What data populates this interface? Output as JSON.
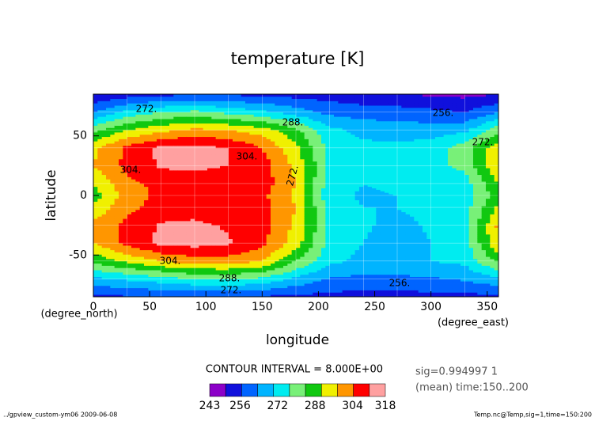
{
  "chart_data": {
    "type": "contour",
    "title": "temperature [K]",
    "xlabel": "longitude",
    "ylabel": "latitude",
    "xunit": "(degree_east)",
    "yunit": "(degree_north)",
    "xlim": [
      0,
      360
    ],
    "ylim": [
      -85,
      85
    ],
    "xticks": [
      0,
      50,
      100,
      150,
      200,
      250,
      300,
      350
    ],
    "yticks": [
      -50,
      0,
      50
    ],
    "x": [
      0,
      30,
      60,
      90,
      120,
      150,
      180,
      210,
      240,
      270,
      300,
      330,
      360
    ],
    "y": [
      -85,
      -70,
      -55,
      -40,
      -25,
      -10,
      0,
      10,
      25,
      40,
      55,
      70,
      85
    ],
    "z": [
      [
        246,
        247,
        248,
        248,
        248,
        247,
        246,
        245,
        245,
        245,
        245,
        245,
        246
      ],
      [
        262,
        265,
        268,
        272,
        273,
        270,
        262,
        255,
        254,
        254,
        255,
        257,
        262
      ],
      [
        282,
        290,
        296,
        300,
        300,
        296,
        280,
        266,
        262,
        262,
        264,
        266,
        282
      ],
      [
        296,
        306,
        314,
        315,
        313,
        306,
        292,
        269,
        264,
        260,
        264,
        268,
        296
      ],
      [
        298,
        306,
        313,
        314,
        311,
        307,
        294,
        270,
        265,
        262,
        265,
        268,
        298
      ],
      [
        290,
        302,
        307,
        308,
        306,
        307,
        296,
        268,
        264,
        264,
        266,
        268,
        290
      ],
      [
        284,
        300,
        306,
        310,
        306,
        306,
        294,
        266,
        263,
        264,
        266,
        268,
        284
      ],
      [
        288,
        302,
        306,
        307,
        306,
        308,
        296,
        267,
        264,
        265,
        266,
        268,
        288
      ],
      [
        296,
        306,
        313,
        314,
        312,
        308,
        294,
        270,
        266,
        266,
        270,
        274,
        296
      ],
      [
        294,
        306,
        314,
        315,
        312,
        304,
        290,
        269,
        266,
        266,
        268,
        276,
        294
      ],
      [
        278,
        288,
        294,
        298,
        296,
        292,
        282,
        266,
        262,
        260,
        260,
        262,
        278
      ],
      [
        256,
        266,
        272,
        274,
        270,
        266,
        260,
        254,
        252,
        252,
        250,
        248,
        256
      ],
      [
        240,
        244,
        246,
        247,
        247,
        246,
        245,
        244,
        242,
        240,
        239,
        238,
        240
      ]
    ],
    "levels": [
      240,
      248,
      256,
      264,
      272,
      280,
      288,
      296,
      304,
      312
    ],
    "colors": [
      "#8c00c8",
      "#1010dc",
      "#0064ff",
      "#00b4ff",
      "#00ecf0",
      "#78f078",
      "#10c810",
      "#f0f000",
      "#ff9600",
      "#ff0000",
      "#ffa0a0"
    ],
    "contour_labels": [
      "272.",
      "288.",
      "304.",
      "304.",
      "272.",
      "256.",
      "272.",
      "304.",
      "288.",
      "272.",
      "256."
    ],
    "contour_interval": "CONTOUR INTERVAL = 8.000E+00",
    "colorbar_ticks": [
      243,
      256,
      272,
      288,
      304,
      318
    ],
    "notes": [
      "sig=0.994997 1",
      "(mean) time:150..200"
    ],
    "footer_left": "../gpview_custom-ym06  2009-06-08",
    "footer_right": "Temp.nc@Temp,sig=1,time=150:200"
  }
}
